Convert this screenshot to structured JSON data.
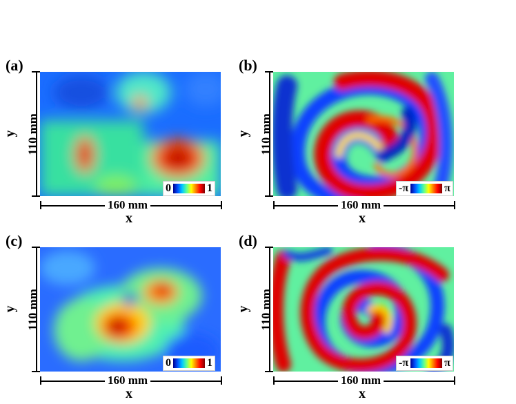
{
  "panels": [
    {
      "id": "a",
      "label": "(a)",
      "type": "amplitude",
      "cbar_min": "0",
      "cbar_max": "1"
    },
    {
      "id": "b",
      "label": "(b)",
      "type": "phase",
      "cbar_min": "-π",
      "cbar_max": "π"
    },
    {
      "id": "c",
      "label": "(c)",
      "type": "amplitude",
      "cbar_min": "0",
      "cbar_max": "1"
    },
    {
      "id": "d",
      "label": "(d)",
      "type": "phase",
      "cbar_min": "-π",
      "cbar_max": "π"
    }
  ],
  "axes": {
    "x_label": "x",
    "y_label": "y",
    "x_extent": "160 mm",
    "y_extent": "110 mm"
  },
  "colormap": [
    "#00008f",
    "#0050ff",
    "#00c8ff",
    "#60ff90",
    "#ffff00",
    "#ff8000",
    "#ff0000",
    "#800000"
  ]
}
